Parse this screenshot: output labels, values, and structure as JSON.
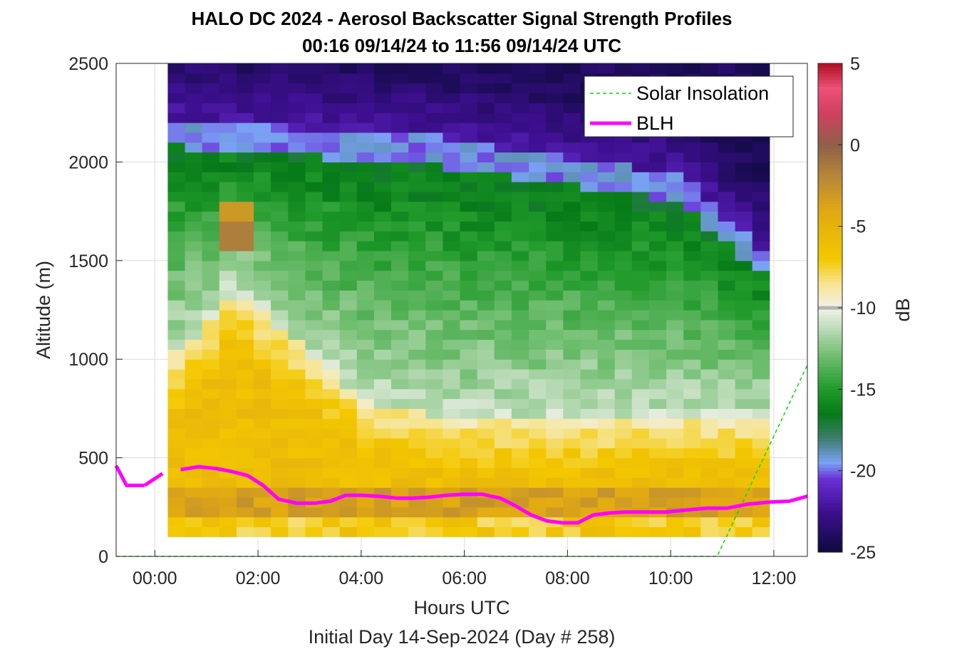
{
  "chart_data": {
    "type": "heatmap",
    "title_line1": "HALO DC 2024 - Aerosol Backscatter Signal Strength Profiles",
    "title_line2": "00:16 09/14/24 to 11:56 09/14/24  UTC",
    "xlabel": "Hours UTC",
    "ylabel": "Altitude (m)",
    "footer": "Initial Day 14-Sep-2024 (Day # 258)",
    "colorbar_label": "dB",
    "xlim_hours": [
      -0.75,
      12.65
    ],
    "ylim": [
      0,
      2500
    ],
    "x_ticks": [
      {
        "v": 0,
        "label": "00:00"
      },
      {
        "v": 2,
        "label": "02:00"
      },
      {
        "v": 4,
        "label": "04:00"
      },
      {
        "v": 6,
        "label": "06:00"
      },
      {
        "v": 8,
        "label": "08:00"
      },
      {
        "v": 10,
        "label": "10:00"
      },
      {
        "v": 12,
        "label": "12:00"
      }
    ],
    "y_ticks": [
      {
        "v": 0,
        "label": "0"
      },
      {
        "v": 500,
        "label": "500"
      },
      {
        "v": 1000,
        "label": "1000"
      },
      {
        "v": 1500,
        "label": "1500"
      },
      {
        "v": 2000,
        "label": "2000"
      },
      {
        "v": 2500,
        "label": "2500"
      }
    ],
    "colorbar_ticks": [
      {
        "v": 5,
        "label": "5"
      },
      {
        "v": 0,
        "label": "0"
      },
      {
        "v": -5,
        "label": "-5"
      },
      {
        "v": -10,
        "label": "-10"
      },
      {
        "v": -15,
        "label": "-15"
      },
      {
        "v": -20,
        "label": "-20"
      },
      {
        "v": -25,
        "label": "-25"
      }
    ],
    "clim": [
      -25,
      5
    ],
    "grid": true,
    "legend_position": "top-right",
    "series": [
      {
        "name": "Solar Insolation",
        "color": "#00dd00",
        "style": "dashed",
        "x": [
          -0.75,
          10.9,
          12.65
        ],
        "y": [
          0,
          0,
          970
        ]
      },
      {
        "name": "BLH",
        "color": "#ff00ff",
        "style": "solid",
        "segments": [
          {
            "x": [
              -0.75,
              -0.55,
              -0.2
            ],
            "y": [
              460,
              360,
              360
            ]
          },
          {
            "x": [
              -0.2,
              0.15
            ],
            "y": [
              360,
              420
            ]
          },
          {
            "x": [
              0.5,
              0.85,
              1.2,
              1.5,
              1.8,
              2.1,
              2.4,
              2.75,
              3.1,
              3.4,
              3.7,
              4.0,
              4.35,
              4.7,
              5.0,
              5.3,
              5.65,
              6.0,
              6.35,
              6.7,
              7.0,
              7.3,
              7.6,
              7.9,
              8.2,
              8.5,
              8.8,
              9.1,
              9.5,
              9.9,
              10.3,
              10.7,
              11.1,
              11.5,
              11.9,
              12.3,
              12.65
            ],
            "y": [
              440,
              455,
              445,
              430,
              410,
              360,
              290,
              270,
              270,
              280,
              310,
              310,
              305,
              295,
              295,
              300,
              310,
              315,
              315,
              295,
              255,
              210,
              180,
              170,
              170,
              210,
              220,
              225,
              225,
              225,
              235,
              245,
              245,
              265,
              275,
              280,
              305
            ]
          }
        ]
      }
    ],
    "heatmap": {
      "x_start": 0.25,
      "x_step": 0.3333,
      "y_start": 100,
      "y_step": 50,
      "colorscale": [
        {
          "v": -25,
          "c": "#0d0a3d"
        },
        {
          "v": -22.5,
          "c": "#3d0f8f"
        },
        {
          "v": -20.5,
          "c": "#6a2fd6"
        },
        {
          "v": -19.5,
          "c": "#7aa2f4"
        },
        {
          "v": -18,
          "c": "#3d7d6e"
        },
        {
          "v": -16.5,
          "c": "#067a18"
        },
        {
          "v": -15,
          "c": "#209a2a"
        },
        {
          "v": -13,
          "c": "#6cbc6c"
        },
        {
          "v": -11,
          "c": "#c8e0c4"
        },
        {
          "v": -10,
          "c": "#f2f2ea"
        },
        {
          "v": -8.5,
          "c": "#f6e490"
        },
        {
          "v": -7,
          "c": "#f4c800"
        },
        {
          "v": -4,
          "c": "#e0a814"
        },
        {
          "v": -2,
          "c": "#b88838"
        },
        {
          "v": 0,
          "c": "#906048"
        },
        {
          "v": 2,
          "c": "#d04060"
        },
        {
          "v": 3.5,
          "c": "#ee5078"
        },
        {
          "v": 5,
          "c": "#b01020"
        }
      ]
    }
  }
}
